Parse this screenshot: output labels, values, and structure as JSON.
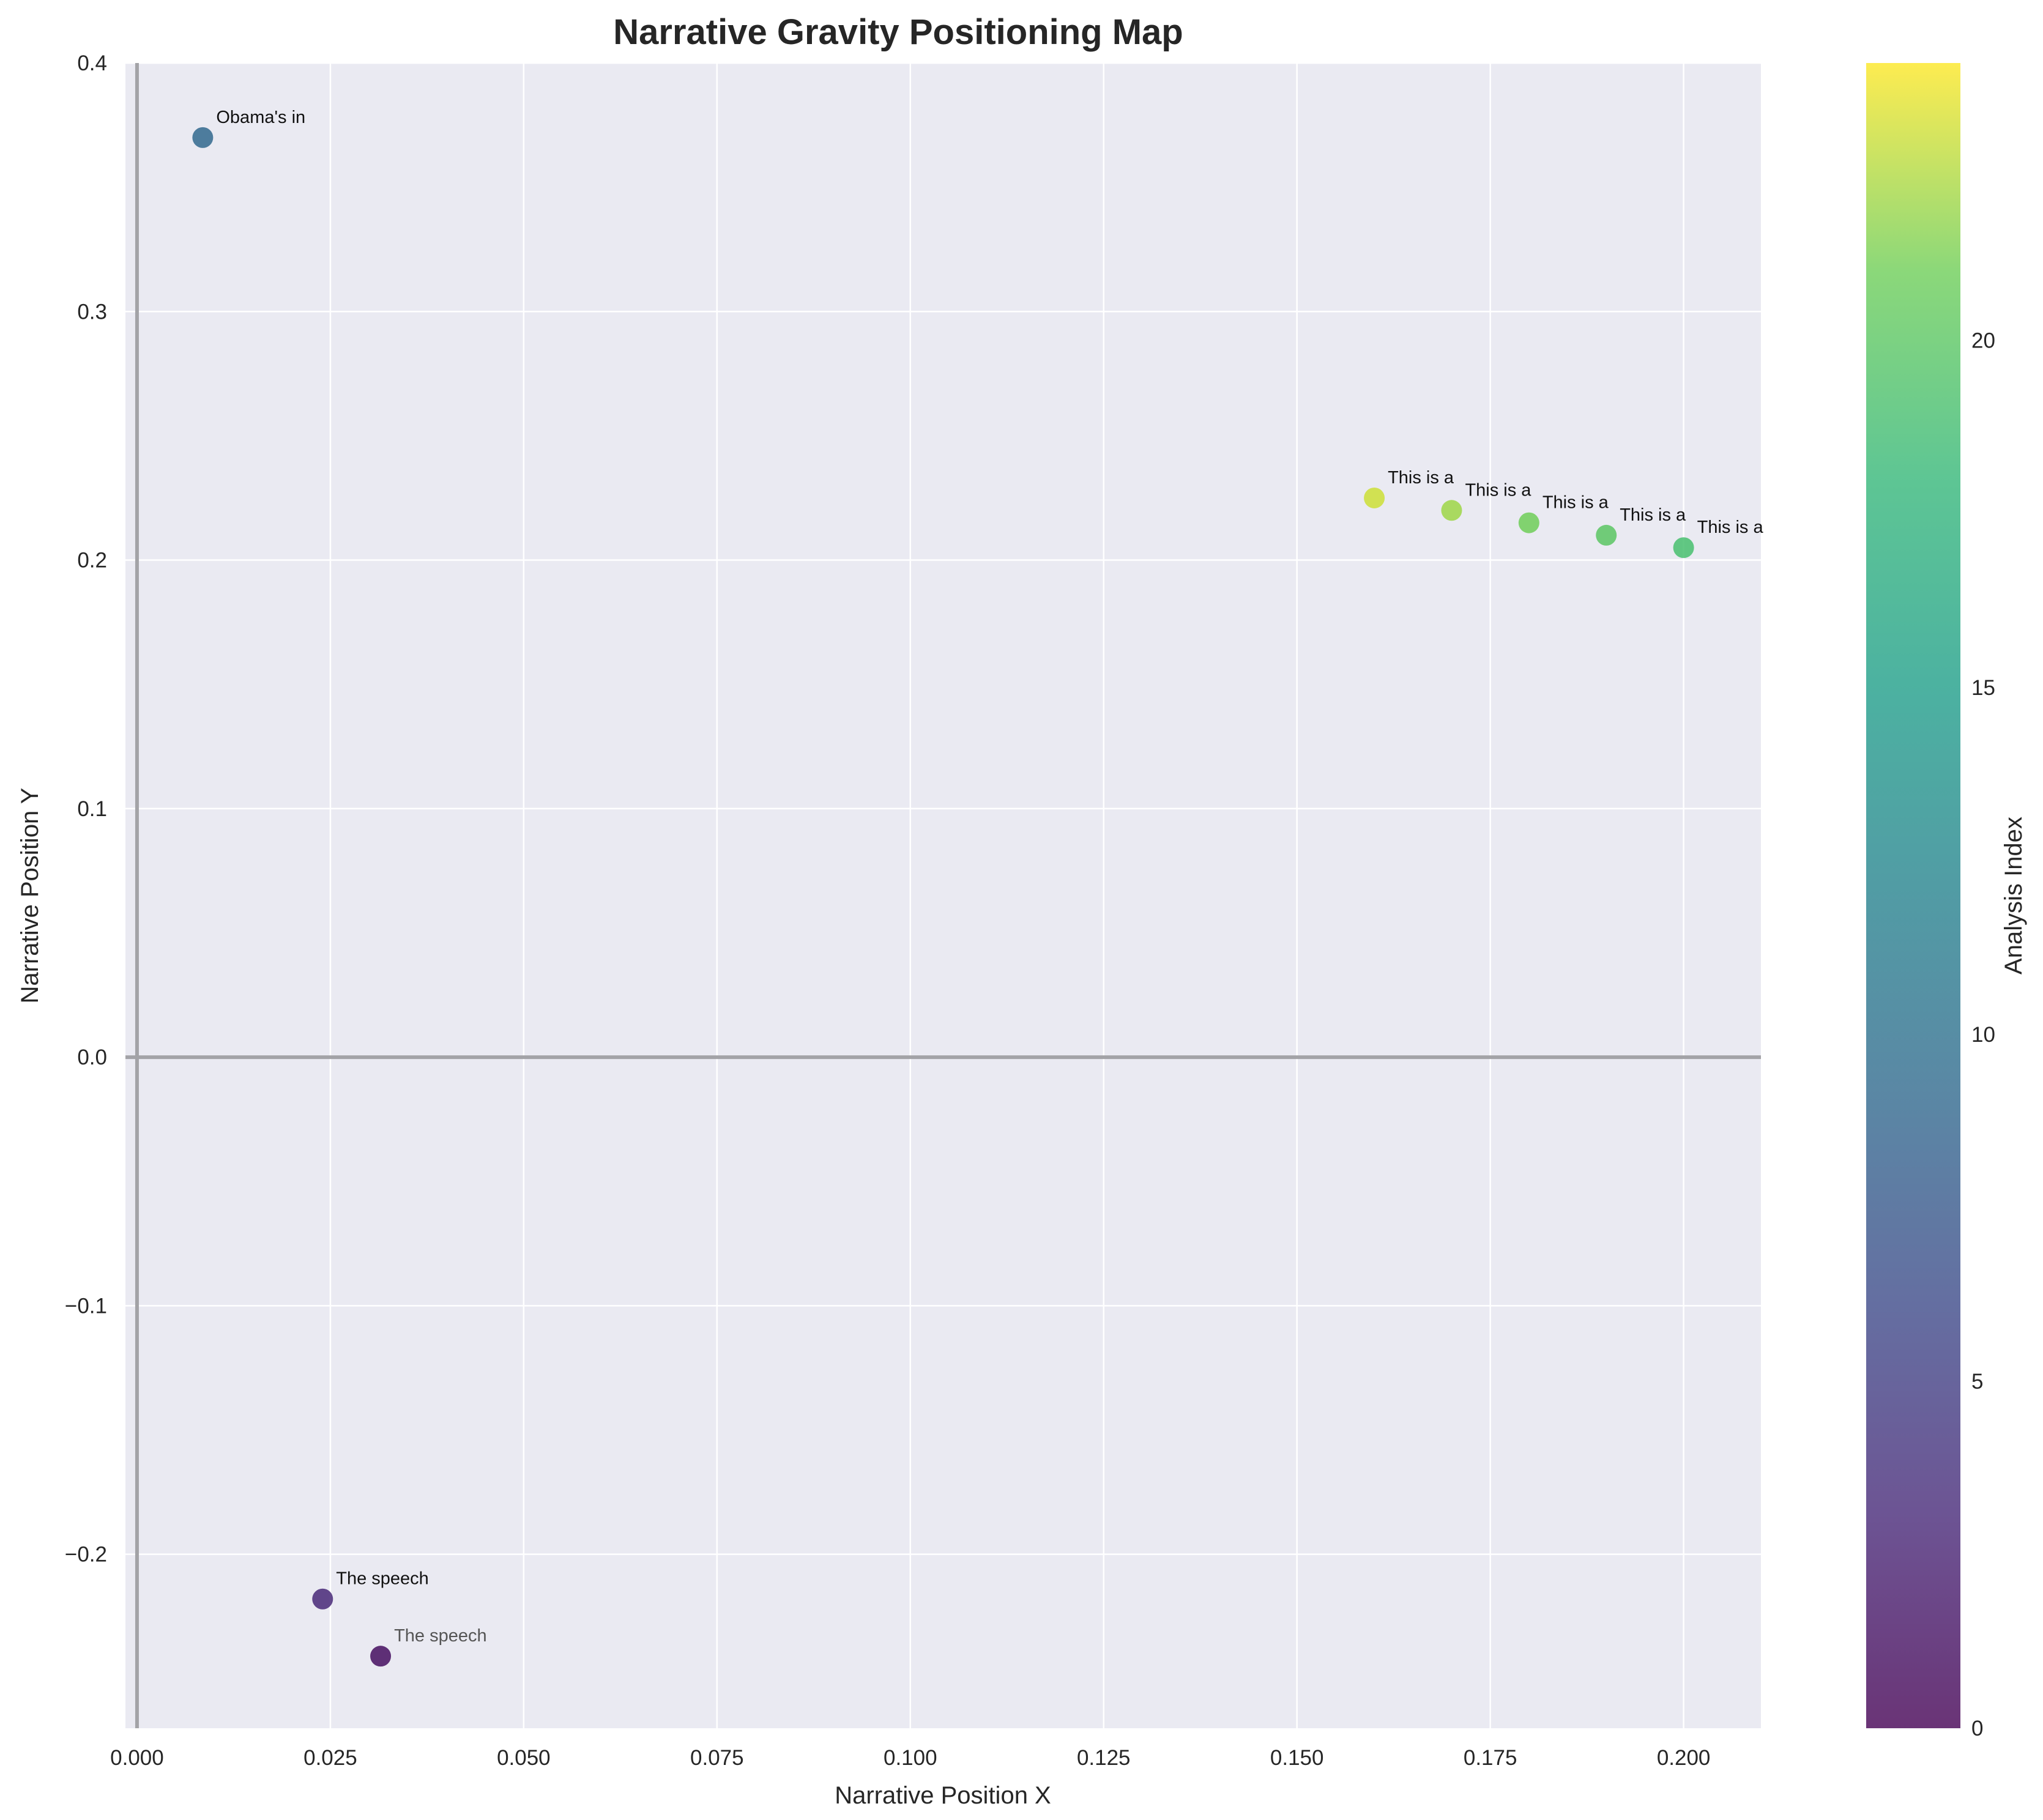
{
  "chart_data": {
    "type": "scatter",
    "title": "Narrative Gravity Positioning Map",
    "xlabel": "Narrative Position X",
    "ylabel": "Narrative Position Y",
    "xlim": [
      -0.0015,
      0.21
    ],
    "ylim": [
      -0.27,
      0.4
    ],
    "x_ticks": [
      0.0,
      0.025,
      0.05,
      0.075,
      0.1,
      0.125,
      0.15,
      0.175,
      0.2
    ],
    "x_tick_labels": [
      "0.000",
      "0.025",
      "0.050",
      "0.075",
      "0.100",
      "0.125",
      "0.150",
      "0.175",
      "0.200"
    ],
    "y_ticks": [
      -0.2,
      -0.1,
      0.0,
      0.1,
      0.2,
      0.3,
      0.4
    ],
    "y_tick_labels": [
      "−0.2",
      "−0.1",
      "0.0",
      "0.1",
      "0.2",
      "0.3",
      "0.4"
    ],
    "grid": true,
    "reference_lines": {
      "x": 0.0,
      "y": 0.0
    },
    "colormap": "viridis",
    "colorbar": {
      "label": "Analysis Index",
      "range": [
        0,
        24
      ],
      "ticks": [
        0,
        5,
        10,
        15,
        20
      ],
      "tick_labels": [
        "0",
        "5",
        "10",
        "15",
        "20"
      ]
    },
    "points": [
      {
        "x": 0.0085,
        "y": 0.37,
        "index": 9,
        "label": "Obama's in"
      },
      {
        "x": 0.16,
        "y": 0.225,
        "index": 23,
        "label": "This is a"
      },
      {
        "x": 0.17,
        "y": 0.22,
        "index": 22,
        "label": "This is a"
      },
      {
        "x": 0.18,
        "y": 0.215,
        "index": 21,
        "label": "This is a"
      },
      {
        "x": 0.19,
        "y": 0.21,
        "index": 20,
        "label": "This is a"
      },
      {
        "x": 0.2,
        "y": 0.205,
        "index": 19,
        "label": "This is a"
      },
      {
        "x": 0.024,
        "y": -0.218,
        "index": 3,
        "label": "The speech"
      },
      {
        "x": 0.0315,
        "y": -0.241,
        "index": 1,
        "label": "The speech",
        "faded": true
      }
    ]
  }
}
